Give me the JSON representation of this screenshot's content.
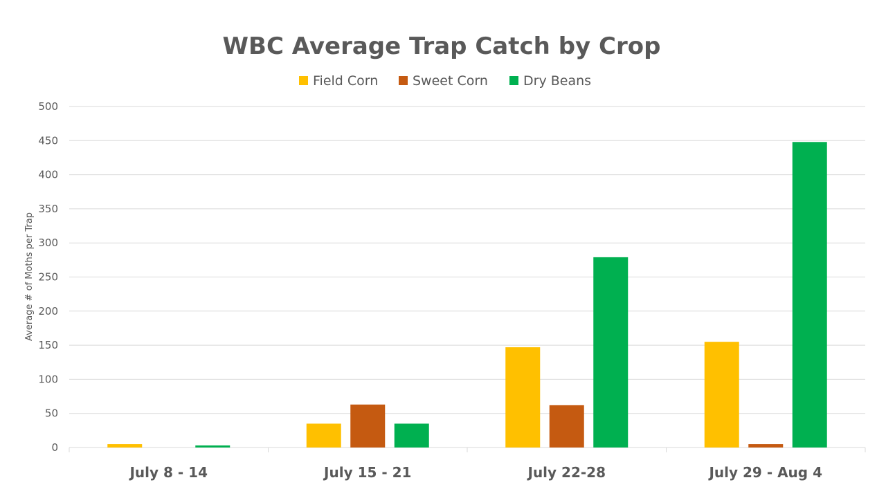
{
  "chart_data": {
    "type": "bar",
    "title": "WBC Average Trap Catch by Crop",
    "xlabel": "",
    "ylabel": "Average # of Moths per Trap",
    "ylim": [
      0,
      500
    ],
    "yticks": [
      0,
      50,
      100,
      150,
      200,
      250,
      300,
      350,
      400,
      450,
      500
    ],
    "grid": true,
    "legend_position": "top",
    "categories": [
      "July 8 - 14",
      "July 15 - 21",
      "July 22-28",
      "July 29 - Aug 4"
    ],
    "series": [
      {
        "name": "Field Corn",
        "color": "#FFC000",
        "values": [
          5,
          35,
          147,
          155
        ]
      },
      {
        "name": "Sweet Corn",
        "color": "#C55A11",
        "values": [
          0,
          63,
          62,
          5
        ]
      },
      {
        "name": "Dry Beans",
        "color": "#00B050",
        "values": [
          3,
          35,
          279,
          448
        ]
      }
    ]
  }
}
